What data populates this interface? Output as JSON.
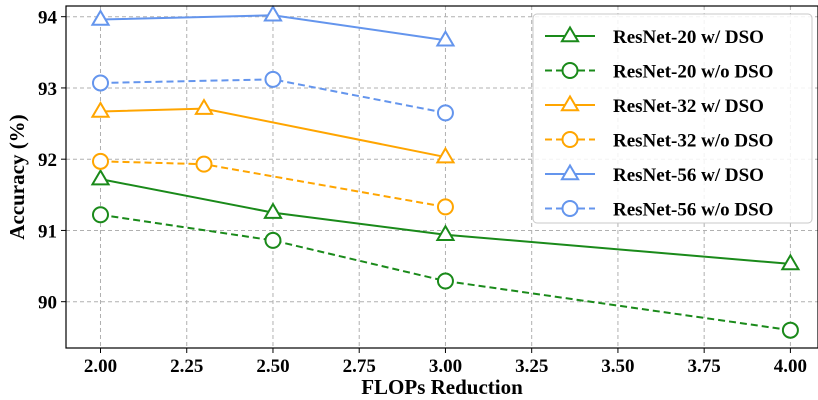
{
  "chart_data": {
    "type": "line",
    "title": "",
    "xlabel": "FLOPs Reduction",
    "ylabel": "Accuracy (%)",
    "xlim": [
      1.9,
      4.08
    ],
    "ylim": [
      89.35,
      94.15
    ],
    "xticks": [
      2.0,
      2.25,
      2.5,
      2.75,
      3.0,
      3.25,
      3.5,
      3.75,
      4.0
    ],
    "xtick_labels": [
      "2.00",
      "2.25",
      "2.50",
      "2.75",
      "3.00",
      "3.25",
      "3.50",
      "3.75",
      "4.00"
    ],
    "yticks": [
      90,
      91,
      92,
      93,
      94
    ],
    "ytick_labels": [
      "90",
      "91",
      "92",
      "93",
      "94"
    ],
    "grid": true,
    "legend_position": "top-right",
    "series": [
      {
        "name": "ResNet-20 w/ DSO",
        "color": "#1a8a1a",
        "linestyle": "solid",
        "marker": "triangle",
        "x": [
          2.0,
          2.5,
          3.0,
          4.0
        ],
        "y": [
          91.72,
          91.25,
          90.94,
          90.53
        ]
      },
      {
        "name": "ResNet-20 w/o DSO",
        "color": "#1a8a1a",
        "linestyle": "dashed",
        "marker": "circle",
        "x": [
          2.0,
          2.5,
          3.0,
          4.0
        ],
        "y": [
          91.22,
          90.86,
          90.29,
          89.6
        ]
      },
      {
        "name": "ResNet-32 w/ DSO",
        "color": "#ffa500",
        "linestyle": "solid",
        "marker": "triangle",
        "x": [
          2.0,
          2.3,
          3.0
        ],
        "y": [
          92.67,
          92.71,
          92.03
        ]
      },
      {
        "name": "ResNet-32 w/o DSO",
        "color": "#ffa500",
        "linestyle": "dashed",
        "marker": "circle",
        "x": [
          2.0,
          2.3,
          3.0
        ],
        "y": [
          91.97,
          91.93,
          91.33
        ]
      },
      {
        "name": "ResNet-56 w/ DSO",
        "color": "#6495ed",
        "linestyle": "solid",
        "marker": "triangle",
        "x": [
          2.0,
          2.5,
          3.0
        ],
        "y": [
          93.96,
          94.02,
          93.67
        ]
      },
      {
        "name": "ResNet-56 w/o DSO",
        "color": "#6495ed",
        "linestyle": "dashed",
        "marker": "circle",
        "x": [
          2.0,
          2.5,
          3.0
        ],
        "y": [
          93.07,
          93.12,
          92.65
        ]
      }
    ]
  }
}
